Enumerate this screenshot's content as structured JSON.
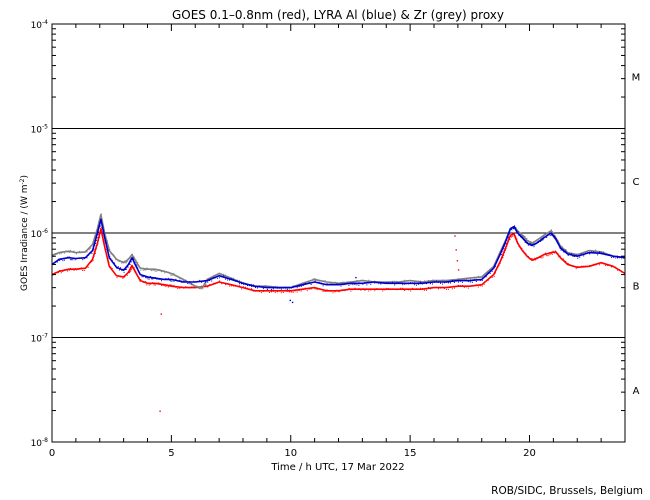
{
  "chart_data": {
    "type": "scatter",
    "title": "GOES 0.1–0.8nm (red), LYRA Al (blue) & Zr (grey) proxy",
    "xlabel": "Time / h UTC, 17 Mar 2022",
    "ylabel": "GOES Irradiance / (W m",
    "ylabel_sup": "-2",
    "ylabel_end": ")",
    "xlim": [
      0,
      24
    ],
    "ylim_exp": [
      -8,
      -4
    ],
    "yscale": "log",
    "x_ticks": [
      {
        "value": 0,
        "label": "0"
      },
      {
        "value": 5,
        "label": "5"
      },
      {
        "value": 10,
        "label": "10"
      },
      {
        "value": 15,
        "label": "15"
      },
      {
        "value": 20,
        "label": "20"
      }
    ],
    "y_ticks": [
      {
        "value_exp": -8,
        "base": "10",
        "sup": "-8"
      },
      {
        "value_exp": -7,
        "base": "10",
        "sup": "-7"
      },
      {
        "value_exp": -6,
        "base": "10",
        "sup": "-6"
      },
      {
        "value_exp": -5,
        "base": "10",
        "sup": "-5"
      },
      {
        "value_exp": -4,
        "base": "10",
        "sup": "-4"
      }
    ],
    "class_lines_exp": [
      -7,
      -6,
      -5
    ],
    "flare_classes": [
      {
        "label": "A",
        "center_exp": -7.5
      },
      {
        "label": "B",
        "center_exp": -6.5
      },
      {
        "label": "C",
        "center_exp": -5.5
      },
      {
        "label": "M",
        "center_exp": -4.5
      }
    ],
    "series": [
      {
        "color": "#ff0000",
        "x": [
          0,
          0.3,
          0.7,
          1.0,
          1.4,
          1.7,
          1.9,
          2.05,
          2.2,
          2.4,
          2.7,
          3.0,
          3.2,
          3.35,
          3.5,
          3.7,
          4.0,
          4.3,
          4.7,
          5.0,
          5.5,
          6.0,
          6.5,
          7.0,
          7.5,
          8.0,
          8.5,
          9.0,
          9.5,
          10.0,
          10.5,
          11.0,
          11.5,
          12.0,
          12.5,
          13.0,
          13.5,
          14.0,
          14.5,
          15.0,
          15.5,
          16.0,
          16.5,
          17.0,
          17.5,
          18.0,
          18.5,
          18.8,
          19.0,
          19.2,
          19.35,
          19.5,
          19.7,
          19.9,
          20.1,
          20.3,
          20.6,
          20.9,
          21.1,
          21.3,
          21.6,
          22.0,
          22.5,
          23.0,
          23.5,
          24.0
        ],
        "y": [
          4e-07,
          4.3e-07,
          4.5e-07,
          4.5e-07,
          4.6e-07,
          5.6e-07,
          8e-07,
          1.1e-06,
          7.5e-07,
          4.8e-07,
          3.9e-07,
          3.8e-07,
          4.2e-07,
          4.9e-07,
          4.2e-07,
          3.5e-07,
          3.3e-07,
          3.3e-07,
          3.2e-07,
          3.1e-07,
          3e-07,
          3e-07,
          3.1e-07,
          3.4e-07,
          3.2e-07,
          3e-07,
          2.8e-07,
          2.8e-07,
          2.8e-07,
          2.8e-07,
          2.9e-07,
          3e-07,
          2.8e-07,
          2.8e-07,
          2.9e-07,
          2.9e-07,
          2.9e-07,
          2.9e-07,
          2.9e-07,
          2.9e-07,
          2.9e-07,
          3e-07,
          3e-07,
          3.1e-07,
          3.1e-07,
          3.2e-07,
          4e-07,
          5.5e-07,
          7.2e-07,
          9.5e-07,
          9.8e-07,
          8e-07,
          6.8e-07,
          6e-07,
          5.5e-07,
          5.7e-07,
          6.2e-07,
          6.5e-07,
          6.6e-07,
          5.8e-07,
          5e-07,
          4.7e-07,
          4.8e-07,
          5.2e-07,
          4.8e-07,
          4.1e-07
        ]
      },
      {
        "color": "#808080",
        "x": [
          0,
          0.3,
          0.7,
          1.0,
          1.4,
          1.7,
          1.9,
          2.05,
          2.2,
          2.4,
          2.7,
          3.0,
          3.2,
          3.35,
          3.5,
          3.7,
          4.0,
          4.3,
          4.7,
          5.0,
          5.5,
          6.0,
          6.3,
          6.5,
          7.0,
          7.5,
          8.0,
          8.5,
          9.0,
          9.5,
          10.0,
          10.5,
          11.0,
          11.5,
          12.0,
          12.5,
          13.0,
          13.5,
          14.0,
          14.5,
          15.0,
          15.5,
          16.0,
          16.5,
          17.0,
          17.5,
          18.0,
          18.5,
          18.8,
          19.0,
          19.2,
          19.35,
          19.5,
          19.7,
          19.9,
          20.1,
          20.3,
          20.6,
          20.9,
          21.1,
          21.3,
          21.6,
          22.0,
          22.5,
          23.0,
          23.5,
          24.0
        ],
        "y": [
          6.1e-07,
          6.5e-07,
          6.7e-07,
          6.5e-07,
          6.6e-07,
          7.8e-07,
          1.1e-06,
          1.5e-06,
          1e-06,
          6.8e-07,
          5.6e-07,
          5.2e-07,
          5.6e-07,
          6.2e-07,
          5.4e-07,
          4.6e-07,
          4.5e-07,
          4.5e-07,
          4.3e-07,
          4.1e-07,
          3.6e-07,
          3.1e-07,
          3e-07,
          3.6e-07,
          4.1e-07,
          3.7e-07,
          3.3e-07,
          3.1e-07,
          3.1e-07,
          3e-07,
          3e-07,
          3.3e-07,
          3.6e-07,
          3.4e-07,
          3.3e-07,
          3.4e-07,
          3.5e-07,
          3.4e-07,
          3.4e-07,
          3.4e-07,
          3.5e-07,
          3.4e-07,
          3.5e-07,
          3.5e-07,
          3.6e-07,
          3.7e-07,
          3.8e-07,
          4.8e-07,
          6.8e-07,
          8.5e-07,
          1.1e-06,
          1.15e-06,
          1.05e-06,
          9.5e-07,
          8.5e-07,
          8e-07,
          8.5e-07,
          9.5e-07,
          1.05e-06,
          9e-07,
          7.5e-07,
          6.5e-07,
          6.2e-07,
          6.8e-07,
          6.6e-07,
          6e-07,
          5.8e-07
        ]
      },
      {
        "color": "#0000cc",
        "x": [
          0,
          0.3,
          0.7,
          1.0,
          1.4,
          1.7,
          1.9,
          2.05,
          2.2,
          2.4,
          2.7,
          3.0,
          3.2,
          3.35,
          3.5,
          3.7,
          4.0,
          4.3,
          4.7,
          5.0,
          5.5,
          6.0,
          6.5,
          7.0,
          7.5,
          8.0,
          8.5,
          9.0,
          9.5,
          10.0,
          10.5,
          11.0,
          11.5,
          12.0,
          12.5,
          13.0,
          13.5,
          14.0,
          14.5,
          15.0,
          15.5,
          16.0,
          16.5,
          17.0,
          17.5,
          18.0,
          18.5,
          18.8,
          19.0,
          19.2,
          19.35,
          19.5,
          19.7,
          19.9,
          20.1,
          20.3,
          20.6,
          20.9,
          21.1,
          21.3,
          21.6,
          22.0,
          22.5,
          23.0,
          23.5,
          24.0
        ],
        "y": [
          5e-07,
          5.6e-07,
          5.8e-07,
          5.7e-07,
          5.8e-07,
          6.8e-07,
          1e-06,
          1.35e-06,
          9.2e-07,
          5.8e-07,
          4.7e-07,
          4.4e-07,
          5e-07,
          5.8e-07,
          4.9e-07,
          4e-07,
          3.8e-07,
          3.7e-07,
          3.6e-07,
          3.6e-07,
          3.4e-07,
          3.4e-07,
          3.5e-07,
          3.9e-07,
          3.6e-07,
          3.3e-07,
          3.1e-07,
          3e-07,
          3e-07,
          3e-07,
          3.2e-07,
          3.4e-07,
          3.2e-07,
          3.2e-07,
          3.3e-07,
          3.3e-07,
          3.4e-07,
          3.3e-07,
          3.3e-07,
          3.3e-07,
          3.3e-07,
          3.4e-07,
          3.4e-07,
          3.5e-07,
          3.5e-07,
          3.6e-07,
          4.6e-07,
          6.5e-07,
          8.3e-07,
          1.1e-06,
          1.15e-06,
          1e-06,
          9e-07,
          8e-07,
          7.6e-07,
          8e-07,
          9e-07,
          1e-06,
          8.7e-07,
          7.2e-07,
          6.3e-07,
          6e-07,
          6.5e-07,
          6.4e-07,
          6e-07,
          5.8e-07
        ]
      }
    ],
    "outliers": [
      {
        "x": 4.55,
        "y": 1.7e-07,
        "color": "#ff0000"
      },
      {
        "x": 4.5,
        "y": 2e-08,
        "color": "#ff0000"
      },
      {
        "x": 16.85,
        "y": 9.5e-07,
        "color": "#ff0000"
      },
      {
        "x": 16.9,
        "y": 7e-07,
        "color": "#ff0000"
      },
      {
        "x": 16.95,
        "y": 5.5e-07,
        "color": "#ff0000"
      },
      {
        "x": 17.0,
        "y": 4.5e-07,
        "color": "#ff0000"
      },
      {
        "x": 9.95,
        "y": 2.3e-07,
        "color": "#0000cc"
      },
      {
        "x": 10.05,
        "y": 2.2e-07,
        "color": "#0000cc"
      },
      {
        "x": 12.7,
        "y": 3.8e-07,
        "color": "#0000cc"
      }
    ]
  },
  "credit": "ROB/SIDC, Brussels, Belgium"
}
